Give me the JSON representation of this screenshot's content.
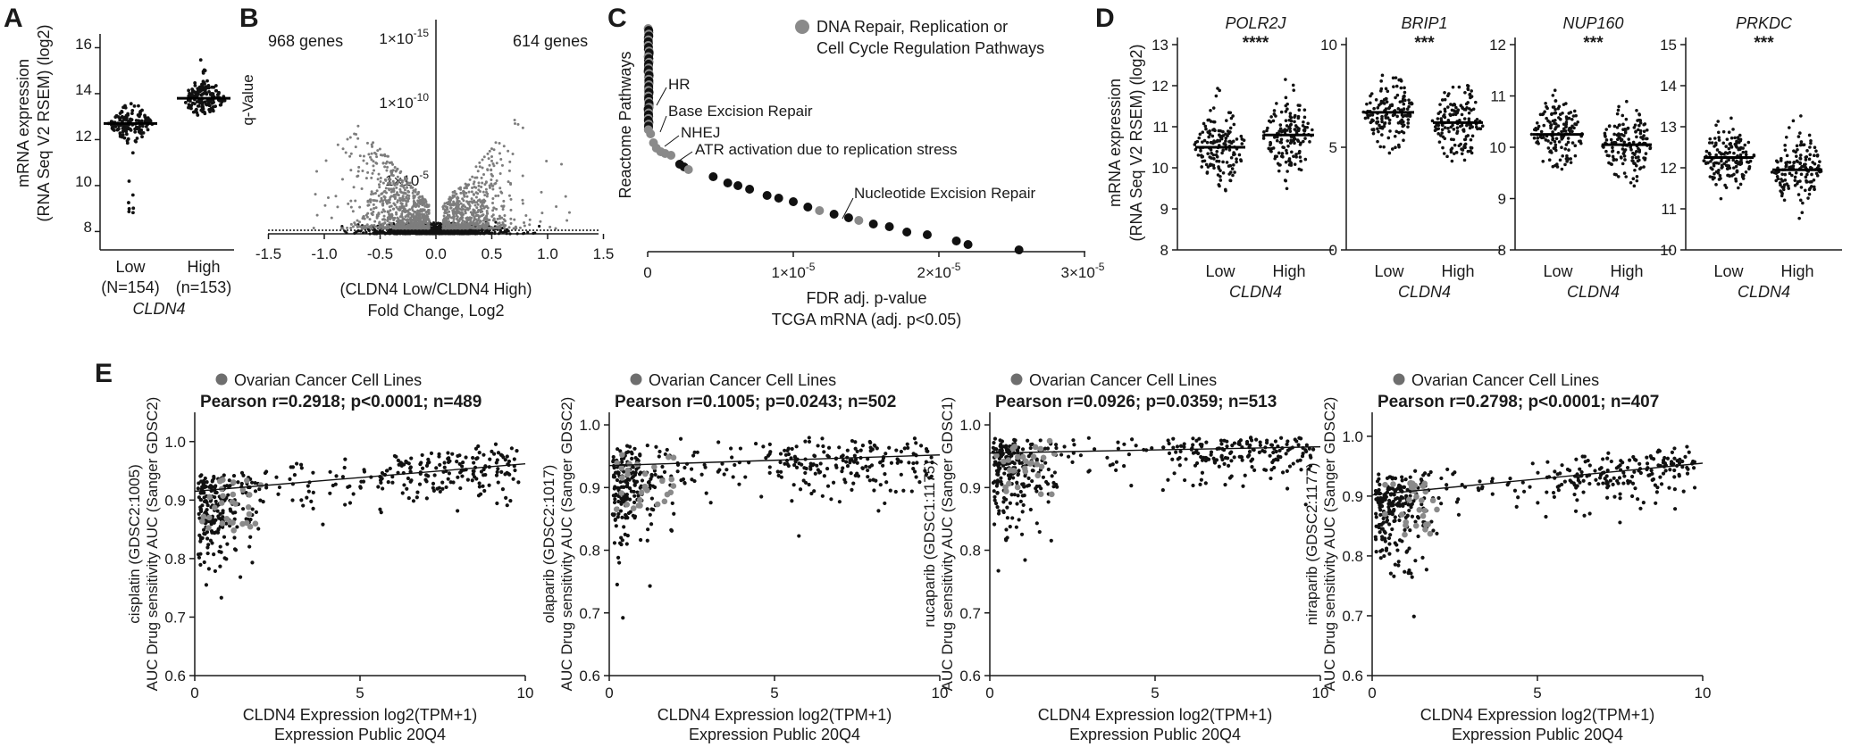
{
  "panels": {
    "A": "A",
    "B": "B",
    "C": "C",
    "D": "D",
    "E": "E"
  },
  "panelA": {
    "ylabel_line1": "mRNA expression",
    "ylabel_line2": "(RNA Seq V2 RSEM) (log2)",
    "yticks": [
      "8",
      "10",
      "12",
      "14",
      "16"
    ],
    "groups": [
      {
        "label": "Low",
        "n": "(N=154)",
        "median": 12.7
      },
      {
        "label": "High",
        "n": "(n=153)",
        "median": 13.8
      }
    ],
    "xlabel": "CLDN4"
  },
  "panelB": {
    "left_count": "968 genes",
    "right_count": "614 genes",
    "ylabel": "q-Value",
    "yticks": [
      "1×10",
      "1×10",
      "1×10"
    ],
    "yexp": [
      "-15",
      "-10",
      "-5"
    ],
    "xticks": [
      "-1.5",
      "-1.0",
      "-0.5",
      "0.0",
      "0.5",
      "1.0",
      "1.5"
    ],
    "xlabel_line1": "(CLDN4 Low/CLDN4 High)",
    "xlabel_line2": "Fold Change, Log2"
  },
  "panelC": {
    "legend_line1": "DNA Repair, Replication or",
    "legend_line2": "Cell Cycle Regulation Pathways",
    "ylabel": "Reactome Pathways",
    "annotations": [
      "HR",
      "Base Excision Repair",
      "NHEJ",
      "ATR activation due to replication stress",
      "Nucleotide Excision Repair"
    ],
    "xticks": [
      "0",
      "1×10",
      "2×10",
      "3×10"
    ],
    "xexp": [
      "",
      "-5",
      "-5",
      "-5"
    ],
    "xlabel_line1": "FDR adj. p-value",
    "xlabel_line2": "TCGA mRNA (adj. p<0.05)"
  },
  "panelD": {
    "ylabel_line1": "mRNA expression",
    "ylabel_line2": "(RNA Seq V2 RSEM) (log2)",
    "xgroups": [
      "Low",
      "High"
    ],
    "xlabel": "CLDN4",
    "genes": [
      {
        "name": "POLR2J",
        "sig": "****",
        "yticks": [
          "8",
          "9",
          "10",
          "11",
          "12",
          "13"
        ],
        "ymin": 8,
        "ymax": 13,
        "low_median": 10.5,
        "high_median": 10.8
      },
      {
        "name": "BRIP1",
        "sig": "***",
        "yticks": [
          "0",
          "5",
          "10"
        ],
        "ymin": 0,
        "ymax": 10,
        "low_median": 6.7,
        "high_median": 6.2
      },
      {
        "name": "NUP160",
        "sig": "***",
        "yticks": [
          "8",
          "9",
          "10",
          "11",
          "12"
        ],
        "ymin": 8,
        "ymax": 12,
        "low_median": 10.25,
        "high_median": 10.05
      },
      {
        "name": "PRKDC",
        "sig": "***",
        "yticks": [
          "10",
          "11",
          "12",
          "13",
          "14",
          "15"
        ],
        "ymin": 10,
        "ymax": 15,
        "low_median": 12.25,
        "high_median": 11.95
      }
    ]
  },
  "panelE": {
    "legend": "Ovarian Cancer Cell Lines",
    "ylabel_line2": "AUC Drug sensitivity AUC (Sanger GDSC2)",
    "xlabel_line1": "CLDN4 Expression log2(TPM+1)",
    "xlabel_line2": "Expression Public 20Q4",
    "xticks": [
      "0",
      "5",
      "10"
    ],
    "plots": [
      {
        "drug": "cisplatin (GDSC2:1005)",
        "ylabel2": "AUC Drug sensitivity AUC (Sanger GDSC2)",
        "stat": "Pearson r=0.2918; p<0.0001; n=489",
        "yticks": [
          "0.6",
          "0.7",
          "0.8",
          "0.9",
          "1.0"
        ],
        "ymin": 0.6,
        "ymax": 1.05,
        "fit": [
          0.915,
          0.962
        ]
      },
      {
        "drug": "olaparib (GDSC2:1017)",
        "ylabel2": "AUC Drug sensitivity AUC (Sanger GDSC2)",
        "stat": "Pearson r=0.1005; p=0.0243; n=502",
        "yticks": [
          "0.6",
          "0.7",
          "0.8",
          "0.9",
          "1.0"
        ],
        "ymin": 0.6,
        "ymax": 1.02,
        "fit": [
          0.935,
          0.952
        ]
      },
      {
        "drug": "rucaparib (GDSC1:1175)",
        "ylabel2": "AUC Drug sensitivity AUC (Sanger GDSC1)",
        "stat": "Pearson r=0.0926; p=0.0359; n=513",
        "yticks": [
          "0.6",
          "0.7",
          "0.8",
          "0.9",
          "1.0"
        ],
        "ymin": 0.6,
        "ymax": 1.02,
        "fit": [
          0.955,
          0.965
        ]
      },
      {
        "drug": "niraparib (GDSC2:1177)",
        "ylabel2": "AUC Drug sensitivity AUC (Sanger GDSC2)",
        "stat": "Pearson r=0.2798; p<0.0001; n=407",
        "yticks": [
          "0.6",
          "0.7",
          "0.8",
          "0.9",
          "1.0"
        ],
        "ymin": 0.6,
        "ymax": 1.04,
        "fit": [
          0.902,
          0.955
        ]
      }
    ]
  },
  "chart_data": [
    {
      "type": "scatter",
      "panel": "A",
      "ylabel": "mRNA expression (RNA Seq V2 RSEM) (log2)",
      "categories": [
        "Low (N=154)",
        "High (n=153)"
      ],
      "medians": [
        12.7,
        13.8
      ],
      "ylim": [
        7,
        16.5
      ],
      "xlabel": "CLDN4"
    },
    {
      "type": "scatter",
      "panel": "B",
      "xlabel": "(CLDN4 Low/CLDN4 High) Fold Change, Log2",
      "ylabel": "q-Value",
      "xlim": [
        -1.5,
        1.5
      ],
      "left_count": 968,
      "right_count": 614
    },
    {
      "type": "scatter",
      "panel": "C",
      "xlabel": "FDR adj. p-value TCGA mRNA (adj. p<0.05)",
      "ylabel": "Reactome Pathways",
      "xlim": [
        0,
        3e-05
      ],
      "legend": "DNA Repair, Replication or Cell Cycle Regulation Pathways"
    },
    {
      "type": "scatter",
      "panel": "D",
      "genes": [
        "POLR2J",
        "BRIP1",
        "NUP160",
        "PRKDC"
      ],
      "significance": [
        "****",
        "***",
        "***",
        "***"
      ],
      "categories": [
        "Low",
        "High"
      ],
      "medians": [
        [
          10.5,
          10.8
        ],
        [
          6.7,
          6.2
        ],
        [
          10.25,
          10.05
        ],
        [
          12.25,
          11.95
        ]
      ]
    },
    {
      "type": "scatter",
      "panel": "E",
      "xlabel": "CLDN4 Expression log2(TPM+1)",
      "xlim": [
        0,
        10
      ],
      "series": [
        {
          "name": "cisplatin (GDSC2:1005)",
          "r": 0.2918,
          "p": "<0.0001",
          "n": 489
        },
        {
          "name": "olaparib (GDSC2:1017)",
          "r": 0.1005,
          "p": "0.0243",
          "n": 502
        },
        {
          "name": "rucaparib (GDSC1:1175)",
          "r": 0.0926,
          "p": "0.0359",
          "n": 513
        },
        {
          "name": "niraparib (GDSC2:1177)",
          "r": 0.2798,
          "p": "<0.0001",
          "n": 407
        }
      ]
    }
  ],
  "colors": {
    "dot": "#111111",
    "highlight": "#8a8a8a",
    "grey": "#7d7d7d"
  }
}
